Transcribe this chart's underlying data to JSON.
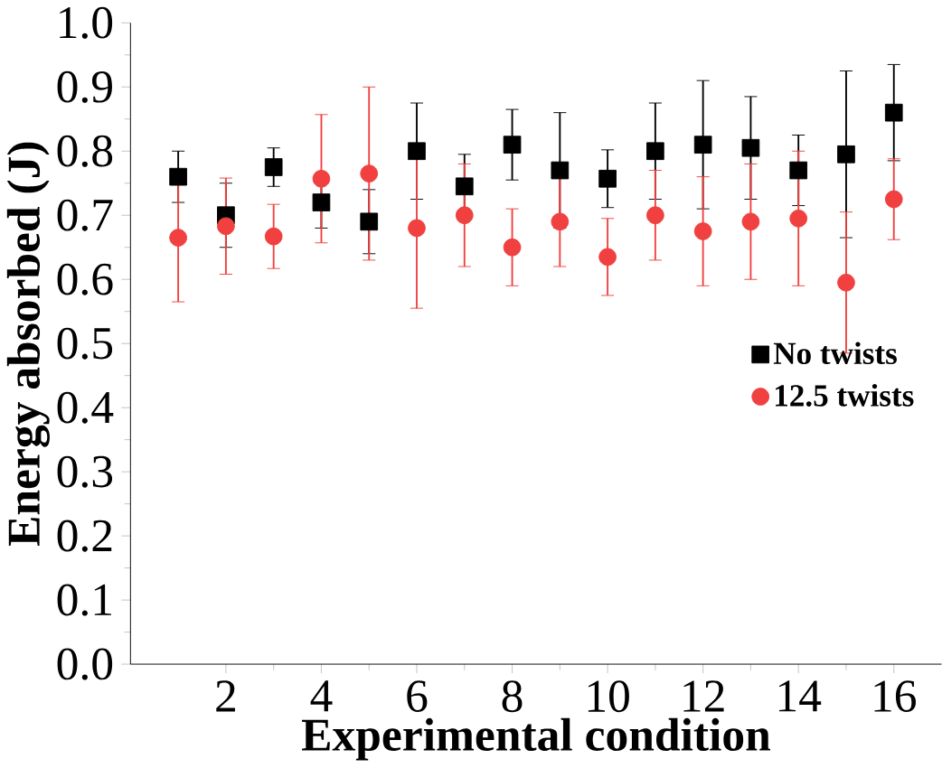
{
  "chart_data": {
    "type": "scatter",
    "xlabel": "Experimental condition",
    "ylabel": "Energy absorbed (J)",
    "x": [
      1,
      2,
      3,
      4,
      5,
      6,
      7,
      8,
      9,
      10,
      11,
      12,
      13,
      14,
      15,
      16
    ],
    "xlim": [
      0,
      17
    ],
    "xticks": [
      2,
      4,
      6,
      8,
      10,
      12,
      14,
      16
    ],
    "ylim": [
      0,
      1.0
    ],
    "yticks": [
      {
        "value": 0,
        "label": "0.0"
      },
      0.1,
      0.2,
      0.3,
      0.4,
      0.5,
      0.6,
      0.7,
      0.8,
      0.9,
      {
        "value": 1.0,
        "label": "1.0"
      }
    ],
    "legend": "right",
    "grid": false,
    "series": [
      {
        "name": "No twists",
        "color": "#000000",
        "marker": "square",
        "values": [
          0.76,
          0.7,
          0.775,
          0.72,
          0.69,
          0.8,
          0.745,
          0.81,
          0.77,
          0.757,
          0.8,
          0.81,
          0.805,
          0.77,
          0.795,
          0.86
        ],
        "errors": [
          0.04,
          0.05,
          0.03,
          0.04,
          0.05,
          0.075,
          0.05,
          0.055,
          0.09,
          0.045,
          0.075,
          0.1,
          0.08,
          0.055,
          0.13,
          0.075
        ]
      },
      {
        "name": "12.5 twists",
        "color": "#f04040",
        "marker": "circle",
        "values": [
          0.665,
          0.683,
          0.667,
          0.757,
          0.765,
          0.68,
          0.7,
          0.65,
          0.69,
          0.635,
          0.7,
          0.675,
          0.69,
          0.695,
          0.595,
          0.725
        ],
        "errors": [
          0.1,
          0.075,
          0.05,
          0.1,
          0.135,
          0.125,
          0.08,
          0.06,
          0.07,
          0.06,
          0.07,
          0.085,
          0.09,
          0.105,
          0.11,
          0.063
        ]
      }
    ]
  }
}
